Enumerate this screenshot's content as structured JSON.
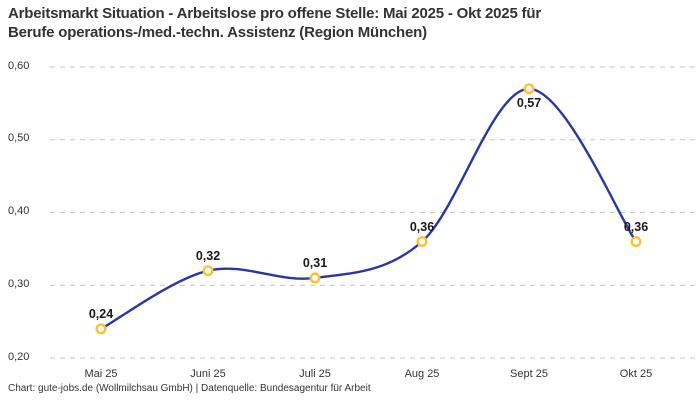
{
  "chart_data": {
    "type": "line",
    "title": "Arbeitsmarkt Situation - Arbeitslose pro offene Stelle: Mai 2025 - Okt 2025 für Berufe operations-/med.-techn. Assistenz (Region München)",
    "title_lines": [
      "Arbeitsmarkt Situation - Arbeitslose pro offene Stelle: Mai 2025 - Okt 2025 für",
      "Berufe operations-/med.-techn. Assistenz (Region München)"
    ],
    "categories": [
      "Mai 25",
      "Juni 25",
      "Juli 25",
      "Aug 25",
      "Sept 25",
      "Okt 25"
    ],
    "values": [
      0.24,
      0.32,
      0.31,
      0.36,
      0.57,
      0.36
    ],
    "value_labels": [
      "0,24",
      "0,32",
      "0,31",
      "0,36",
      "0,57",
      "0,36"
    ],
    "label_positions": [
      "above",
      "above",
      "above",
      "above",
      "below",
      "above"
    ],
    "xlabel": "",
    "ylabel": "",
    "ylim": [
      0.2,
      0.6
    ],
    "yticks": [
      {
        "value": 0.6,
        "label": "0,60"
      },
      {
        "value": 0.5,
        "label": "0,50"
      },
      {
        "value": 0.4,
        "label": "0,40"
      },
      {
        "value": 0.3,
        "label": "0,30"
      },
      {
        "value": 0.2,
        "label": "0,20"
      }
    ],
    "grid": "horizontal-dashed",
    "legend": "none",
    "colors": {
      "line": "#2838a2",
      "marker_stroke": "#fdc132",
      "marker_fill": "#ffffff",
      "grid": "#c4c4c4",
      "title_text": "#333333",
      "tick_text": "#333333",
      "value_text": "#1a1a1a"
    }
  },
  "footer": {
    "credit": "Chart: gute-jobs.de (Wollmilchsau GmbH) | Datenquelle: Bundesagentur für Arbeit"
  }
}
